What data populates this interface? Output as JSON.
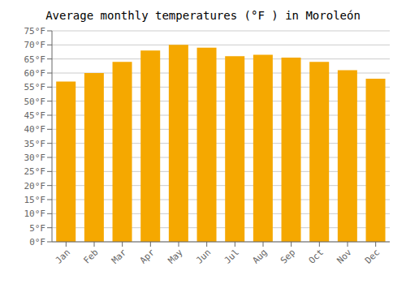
{
  "chart_data": {
    "type": "bar",
    "title": "Average monthly temperatures (°F ) in Moroleón",
    "categories": [
      "Jan",
      "Feb",
      "Mar",
      "Apr",
      "May",
      "Jun",
      "Jul",
      "Aug",
      "Sep",
      "Oct",
      "Nov",
      "Dec"
    ],
    "values": [
      57,
      60,
      64,
      68,
      70,
      69,
      66,
      66.5,
      65.5,
      64,
      61,
      58
    ],
    "color": "#F5A800",
    "ylim": [
      0,
      75
    ],
    "yticks": [
      {
        "value": 0,
        "label": "0°F"
      },
      {
        "value": 5,
        "label": "5°F"
      },
      {
        "value": 10,
        "label": "10°F"
      },
      {
        "value": 15,
        "label": "15°F"
      },
      {
        "value": 20,
        "label": "20°F"
      },
      {
        "value": 25,
        "label": "25°F"
      },
      {
        "value": 30,
        "label": "30°F"
      },
      {
        "value": 35,
        "label": "35°F"
      },
      {
        "value": 40,
        "label": "40°F"
      },
      {
        "value": 45,
        "label": "45°F"
      },
      {
        "value": 50,
        "label": "50°F"
      },
      {
        "value": 55,
        "label": "55°F"
      },
      {
        "value": 60,
        "label": "60°F"
      },
      {
        "value": 65,
        "label": "65°F"
      },
      {
        "value": 70,
        "label": "70°F"
      },
      {
        "value": 75,
        "label": "75°F"
      }
    ],
    "grid": true
  }
}
